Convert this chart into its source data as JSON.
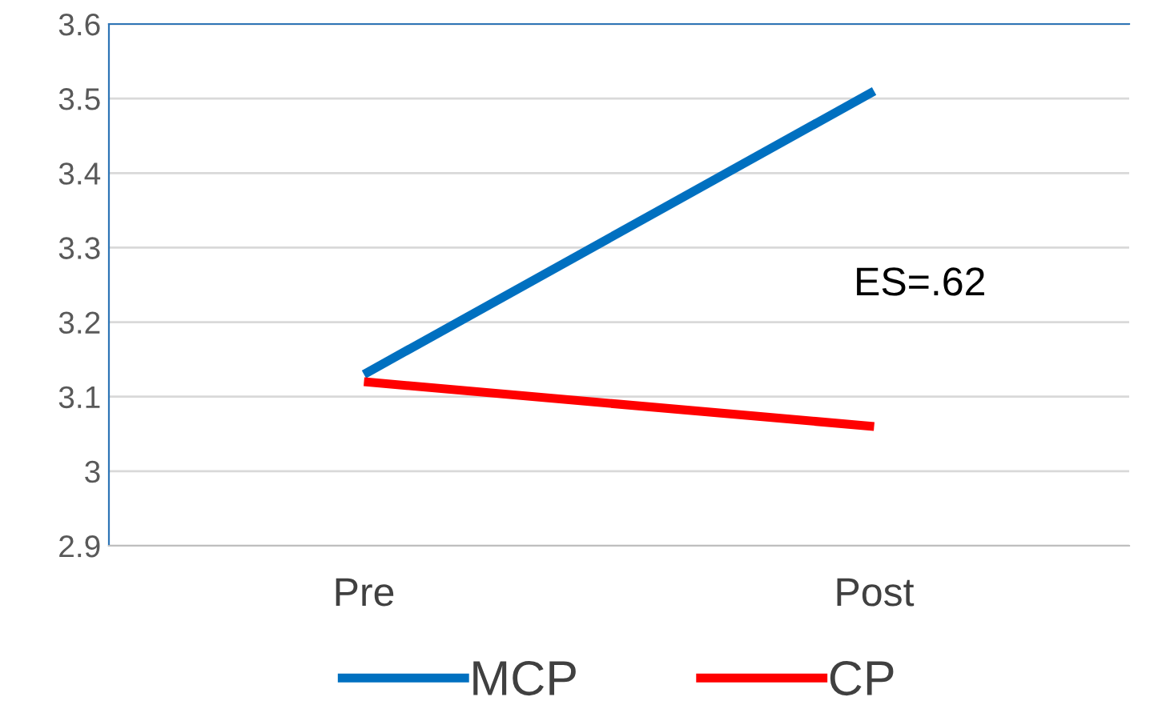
{
  "chart_data": {
    "type": "line",
    "categories": [
      "Pre",
      "Post"
    ],
    "series": [
      {
        "name": "MCP",
        "color": "#0070c0",
        "values": [
          3.13,
          3.51
        ]
      },
      {
        "name": "CP",
        "color": "#ff0000",
        "values": [
          3.12,
          3.06
        ]
      }
    ],
    "ylim": [
      2.9,
      3.6
    ],
    "yticks": [
      2.9,
      3,
      3.1,
      3.2,
      3.3,
      3.4,
      3.5,
      3.6
    ],
    "grid": "y",
    "legend": "bottom",
    "marker": "none",
    "line_style": "solid",
    "annotations": [
      "ES=.62"
    ]
  }
}
